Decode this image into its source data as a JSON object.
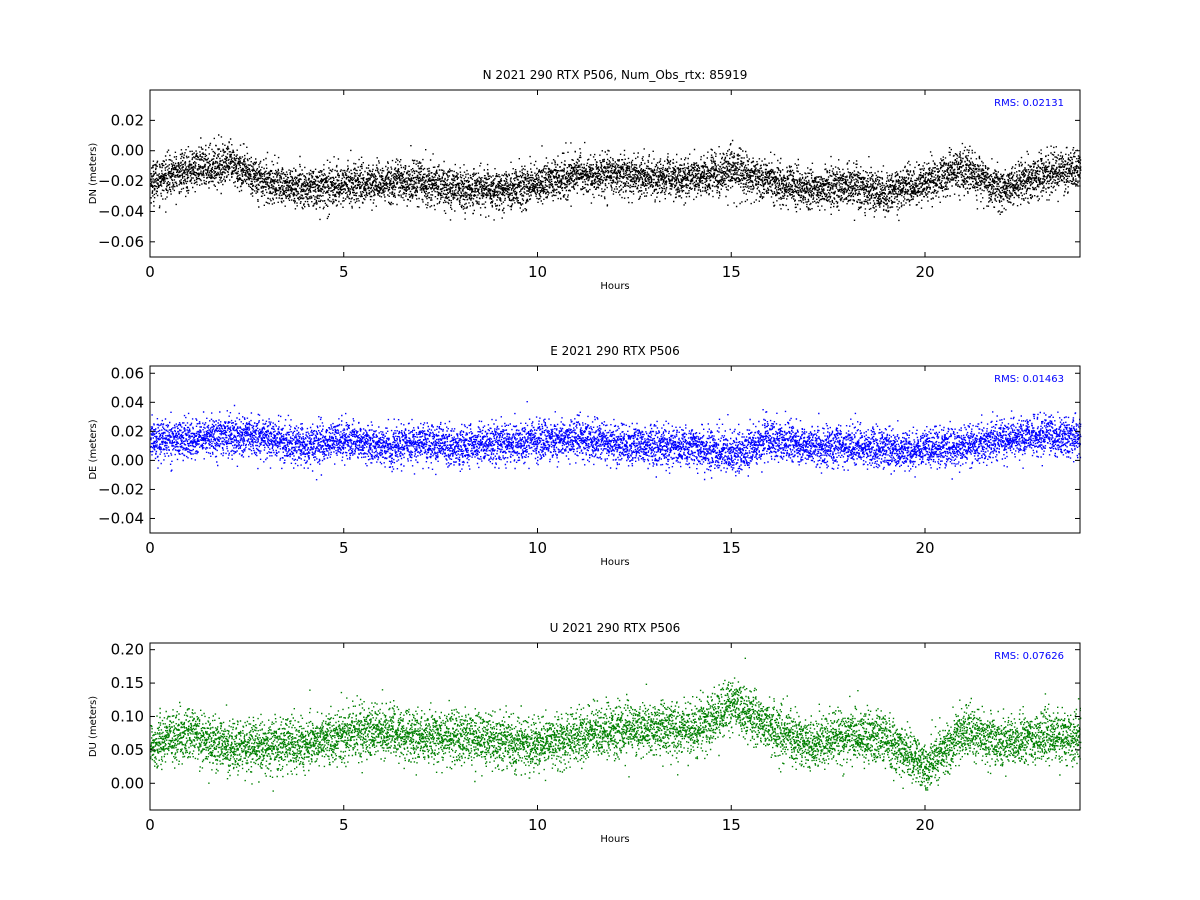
{
  "chart_data": [
    {
      "type": "scatter",
      "title": "N 2021 290 RTX  P506, Num_Obs_rtx: 85919",
      "xlabel": "Hours",
      "ylabel": "DN (meters)",
      "xlim": [
        0,
        24
      ],
      "ylim": [
        -0.07,
        0.04
      ],
      "xticks": [
        "0",
        "5",
        "10",
        "15",
        "20"
      ],
      "yticks": [
        "0.02",
        "0.00",
        "−0.02",
        "−0.04",
        "−0.06"
      ],
      "annotation": "RMS:  0.02131",
      "annotation_color": "#0000ff",
      "color": "#000000",
      "trend": [
        [
          0,
          -0.02
        ],
        [
          1,
          -0.012
        ],
        [
          2,
          -0.008
        ],
        [
          3,
          -0.02
        ],
        [
          4,
          -0.025
        ],
        [
          5,
          -0.022
        ],
        [
          6,
          -0.02
        ],
        [
          7,
          -0.02
        ],
        [
          8,
          -0.025
        ],
        [
          9,
          -0.025
        ],
        [
          10,
          -0.022
        ],
        [
          11,
          -0.015
        ],
        [
          12,
          -0.015
        ],
        [
          13,
          -0.018
        ],
        [
          14,
          -0.018
        ],
        [
          15,
          -0.012
        ],
        [
          16,
          -0.02
        ],
        [
          17,
          -0.025
        ],
        [
          18,
          -0.022
        ],
        [
          19,
          -0.028
        ],
        [
          20,
          -0.02
        ],
        [
          21,
          -0.012
        ],
        [
          22,
          -0.025
        ],
        [
          23,
          -0.015
        ],
        [
          24,
          -0.012
        ]
      ],
      "spread": 0.012,
      "grid": false
    },
    {
      "type": "scatter",
      "title": "E 2021 290 RTX  P506",
      "xlabel": "Hours",
      "ylabel": "DE (meters)",
      "xlim": [
        0,
        24
      ],
      "ylim": [
        -0.05,
        0.065
      ],
      "xticks": [
        "0",
        "5",
        "10",
        "15",
        "20"
      ],
      "yticks": [
        "0.06",
        "0.04",
        "0.02",
        "0.00",
        "−0.02",
        "−0.04"
      ],
      "annotation": "RMS:  0.01463",
      "annotation_color": "#0000ff",
      "color": "#0000ff",
      "trend": [
        [
          0,
          0.015
        ],
        [
          1,
          0.015
        ],
        [
          2,
          0.018
        ],
        [
          3,
          0.015
        ],
        [
          4,
          0.01
        ],
        [
          5,
          0.015
        ],
        [
          6,
          0.01
        ],
        [
          7,
          0.012
        ],
        [
          8,
          0.01
        ],
        [
          9,
          0.012
        ],
        [
          10,
          0.015
        ],
        [
          11,
          0.015
        ],
        [
          12,
          0.012
        ],
        [
          13,
          0.01
        ],
        [
          14,
          0.01
        ],
        [
          15,
          0.005
        ],
        [
          16,
          0.015
        ],
        [
          17,
          0.01
        ],
        [
          18,
          0.01
        ],
        [
          19,
          0.008
        ],
        [
          20,
          0.008
        ],
        [
          21,
          0.01
        ],
        [
          22,
          0.015
        ],
        [
          23,
          0.018
        ],
        [
          24,
          0.015
        ]
      ],
      "spread": 0.012,
      "grid": false
    },
    {
      "type": "scatter",
      "title": "U 2021 290 RTX  P506",
      "xlabel": "Hours",
      "ylabel": "DU (meters)",
      "xlim": [
        0,
        24
      ],
      "ylim": [
        -0.04,
        0.21
      ],
      "xticks": [
        "0",
        "5",
        "10",
        "15",
        "20"
      ],
      "yticks": [
        "0.20",
        "0.15",
        "0.10",
        "0.05",
        "0.00"
      ],
      "annotation": "RMS:  0.07626",
      "annotation_color": "#0000ff",
      "color": "#008000",
      "trend": [
        [
          0,
          0.06
        ],
        [
          1,
          0.075
        ],
        [
          2,
          0.055
        ],
        [
          3,
          0.055
        ],
        [
          4,
          0.06
        ],
        [
          5,
          0.075
        ],
        [
          6,
          0.08
        ],
        [
          7,
          0.07
        ],
        [
          8,
          0.07
        ],
        [
          9,
          0.065
        ],
        [
          10,
          0.06
        ],
        [
          11,
          0.07
        ],
        [
          12,
          0.08
        ],
        [
          13,
          0.085
        ],
        [
          14,
          0.08
        ],
        [
          15,
          0.12
        ],
        [
          16,
          0.085
        ],
        [
          17,
          0.06
        ],
        [
          18,
          0.075
        ],
        [
          19,
          0.065
        ],
        [
          20,
          0.025
        ],
        [
          21,
          0.08
        ],
        [
          22,
          0.06
        ],
        [
          23,
          0.07
        ],
        [
          24,
          0.07
        ]
      ],
      "spread": 0.035,
      "grid": false
    }
  ]
}
